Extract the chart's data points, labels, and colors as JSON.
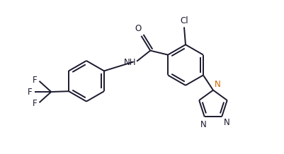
{
  "bg_color": "#ffffff",
  "bond_color": "#1a1a2e",
  "N_color": "#cc6600",
  "bond_lw": 1.4,
  "figsize": [
    4.02,
    2.18
  ],
  "dpi": 100,
  "xlim": [
    0,
    10.05
  ],
  "ylim": [
    0,
    5.45
  ]
}
